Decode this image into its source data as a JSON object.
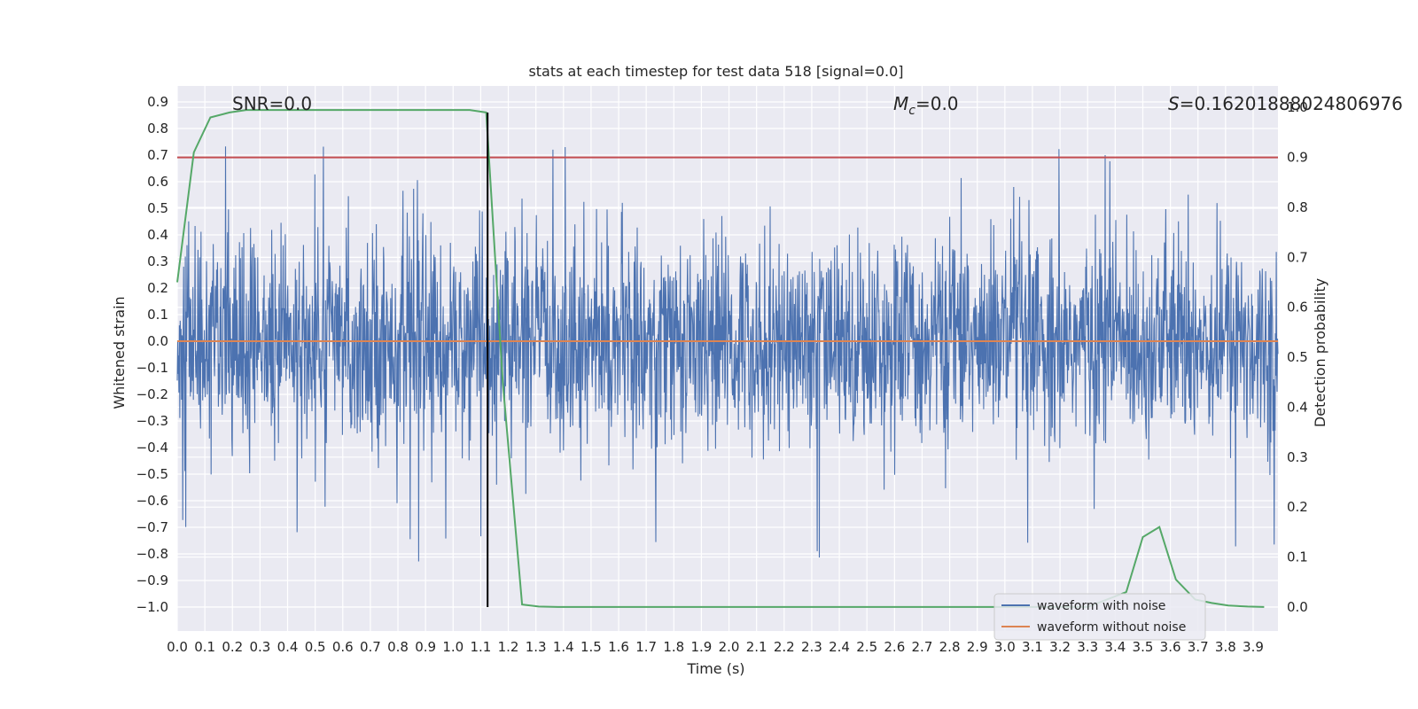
{
  "chart_data": {
    "type": "line",
    "title": "stats at each timestep for test data 518 [signal=0.0]",
    "xlabel": "Time (s)",
    "ylabel": "Whitened strain",
    "y2label": "Detection probability",
    "xlim": [
      0.0,
      3.99
    ],
    "ylim": [
      -1.09,
      0.96
    ],
    "y2lim": [
      -0.048,
      1.043
    ],
    "x_ticks": [
      0.0,
      0.1,
      0.2,
      0.3,
      0.4,
      0.5,
      0.6,
      0.7,
      0.8,
      0.9,
      1.0,
      1.1,
      1.2,
      1.3,
      1.4,
      1.5,
      1.6,
      1.7,
      1.8,
      1.9,
      2.0,
      2.1,
      2.2,
      2.3,
      2.4,
      2.5,
      2.6,
      2.7,
      2.8,
      2.9,
      3.0,
      3.1,
      3.2,
      3.3,
      3.4,
      3.5,
      3.6,
      3.7,
      3.8,
      3.9
    ],
    "y_ticks": [
      0.9,
      0.8,
      0.7,
      0.6,
      0.5,
      0.4,
      0.3,
      0.2,
      0.1,
      0.0,
      -0.1,
      -0.2,
      -0.3,
      -0.4,
      -0.5,
      -0.6,
      -0.7,
      -0.8,
      -0.9,
      -1.0
    ],
    "y_tick_labels": [
      "0.9",
      "0.8",
      "0.7",
      "0.6",
      "0.5",
      "0.4",
      "0.3",
      "0.2",
      "0.1",
      "0.0",
      "−0.1",
      "−0.2",
      "−0.3",
      "−0.4",
      "−0.5",
      "−0.6",
      "−0.7",
      "−0.8",
      "−0.9",
      "−1.0"
    ],
    "y2_ticks": [
      1.0,
      0.9,
      0.8,
      0.7,
      0.6,
      0.5,
      0.4,
      0.3,
      0.2,
      0.1,
      0.0
    ],
    "y2_tick_labels": [
      "1.0",
      "0.9",
      "0.8",
      "0.7",
      "0.6",
      "0.5",
      "0.4",
      "0.3",
      "0.2",
      "0.1",
      "0.0"
    ],
    "grid": true,
    "legend_position": "lower-right",
    "series": [
      {
        "name": "waveform with noise",
        "color": "#4c72b0",
        "description": "dense noise, roughly within -0.5..0.5 with spikes up to 0.86 and down to -1.0",
        "envelope_max": 0.86,
        "envelope_min": -1.0
      },
      {
        "name": "waveform without noise",
        "color": "#dd8452",
        "value": 0.0
      },
      {
        "axis": "right",
        "color": "#55a868",
        "x": [
          0.0,
          0.06,
          0.12,
          0.19,
          0.25,
          0.31,
          0.38,
          0.5,
          0.62,
          0.75,
          0.88,
          1.0,
          1.06,
          1.12,
          1.18,
          1.25,
          1.31,
          1.38,
          1.5,
          1.75,
          2.0,
          2.5,
          3.0,
          3.3,
          3.44,
          3.5,
          3.56,
          3.62,
          3.69,
          3.75,
          3.81,
          3.88,
          3.94
        ],
        "values": [
          0.65,
          0.91,
          0.98,
          0.99,
          0.995,
          0.995,
          0.995,
          0.995,
          0.995,
          0.995,
          0.995,
          0.995,
          0.995,
          0.99,
          0.45,
          0.005,
          0.001,
          0.0,
          0.0,
          0.0,
          0.0,
          0.0,
          0.0,
          0.0,
          0.03,
          0.14,
          0.16,
          0.055,
          0.015,
          0.008,
          0.003,
          0.001,
          0.0
        ]
      },
      {
        "axis": "right",
        "color": "#c44e52",
        "value": 0.9
      }
    ],
    "vline": {
      "x": 1.125,
      "ymin": -1.0,
      "ymax": 0.86,
      "color": "#000000"
    },
    "annotations": {
      "snr": "SNR=0.0",
      "mc_symbol": "M",
      "mc_sub": "c",
      "mc_value": "=0.0",
      "s_symbol": "S",
      "s_value": "=0.16201888024806976"
    }
  }
}
